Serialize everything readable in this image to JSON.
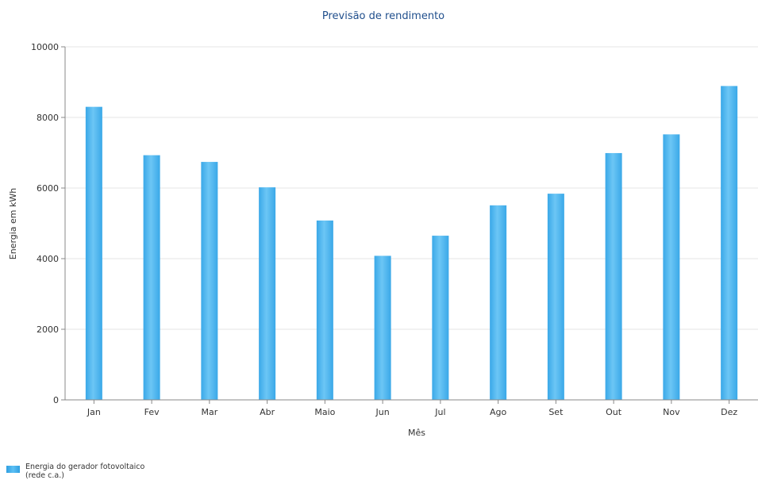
{
  "chart_data": {
    "type": "bar",
    "title": "Previsão de rendimento",
    "xlabel": "Mês",
    "ylabel": "Energia em kWh",
    "ylim": [
      0,
      10000
    ],
    "yticks": [
      "0",
      "2000",
      "4000",
      "6000",
      "8000",
      "10000"
    ],
    "grid": true,
    "categories": [
      "Jan",
      "Fev",
      "Mar",
      "Abr",
      "Maio",
      "Jun",
      "Jul",
      "Ago",
      "Set",
      "Out",
      "Nov",
      "Dez"
    ],
    "series": [
      {
        "name": "Energia do gerador fotovoltaico (rede c.a.)",
        "values": [
          8300,
          6930,
          6740,
          6020,
          5080,
          4080,
          4650,
          5510,
          5840,
          6990,
          7520,
          8890
        ]
      }
    ],
    "legend_position": "bottom-left",
    "colors": {
      "bar": "#3aa8e8",
      "bar_light": "#6cc6f5",
      "grid": "#e6e6e6",
      "title": "#1f4e8c"
    }
  }
}
